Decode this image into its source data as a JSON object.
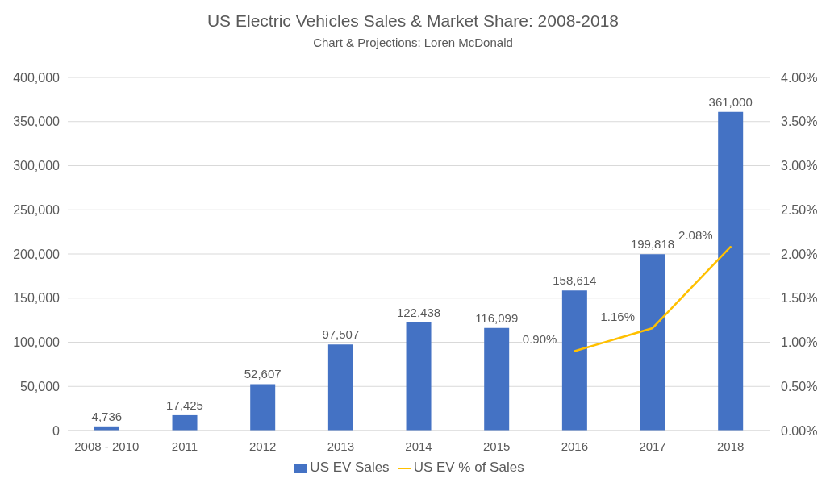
{
  "chart_data": {
    "type": "bar",
    "title": "US Electric Vehicles Sales & Market Share: 2008-2018",
    "subtitle": "Chart & Projections: Loren McDonald",
    "categories": [
      "2008 - 2010",
      "2011",
      "2012",
      "2013",
      "2014",
      "2015",
      "2016",
      "2017",
      "2018"
    ],
    "series": [
      {
        "name": "US EV Sales",
        "color": "#4472c4",
        "values": [
          4736,
          17425,
          52607,
          97507,
          122438,
          116099,
          158614,
          199818,
          361000
        ],
        "value_labels": [
          "4,736",
          "17,425",
          "52,607",
          "97,507",
          "122,438",
          "116,099",
          "158,614",
          "199,818",
          "361,000"
        ]
      },
      {
        "name": "US EV % of Sales",
        "type": "line",
        "axis": "y2",
        "color": "#ffc000",
        "values": [
          null,
          null,
          null,
          null,
          null,
          null,
          0.9,
          1.16,
          2.08
        ],
        "value_labels": [
          null,
          null,
          null,
          null,
          null,
          null,
          "0.90%",
          "1.16%",
          "2.08%"
        ]
      }
    ],
    "ylim": [
      0,
      400000
    ],
    "yticks": [
      0,
      {
        "value": 50000,
        "label": "50,000"
      },
      {
        "value": 100000,
        "label": "100,000"
      },
      {
        "value": 150000,
        "label": "150,000"
      },
      {
        "value": 200000,
        "label": "200,000"
      },
      {
        "value": 250000,
        "label": "250,000"
      },
      {
        "value": 300000,
        "label": "300,000"
      },
      {
        "value": 350000,
        "label": "350,000"
      },
      {
        "value": 400000,
        "label": "400,000"
      }
    ],
    "y2lim": [
      0,
      4
    ],
    "y2ticks": [
      {
        "value": 0,
        "label": "0.00%"
      },
      {
        "value": 0.5,
        "label": "0.50%"
      },
      {
        "value": 1,
        "label": "1.00%"
      },
      {
        "value": 1.5,
        "label": "1.50%"
      },
      {
        "value": 2,
        "label": "2.00%"
      },
      {
        "value": 2.5,
        "label": "2.50%"
      },
      {
        "value": 3,
        "label": "3.00%"
      },
      {
        "value": 3.5,
        "label": "3.50%"
      },
      {
        "value": 4,
        "label": "4.00%"
      }
    ],
    "grid": "y",
    "legend": "bottom",
    "marker": "none",
    "line_style": "solid"
  }
}
